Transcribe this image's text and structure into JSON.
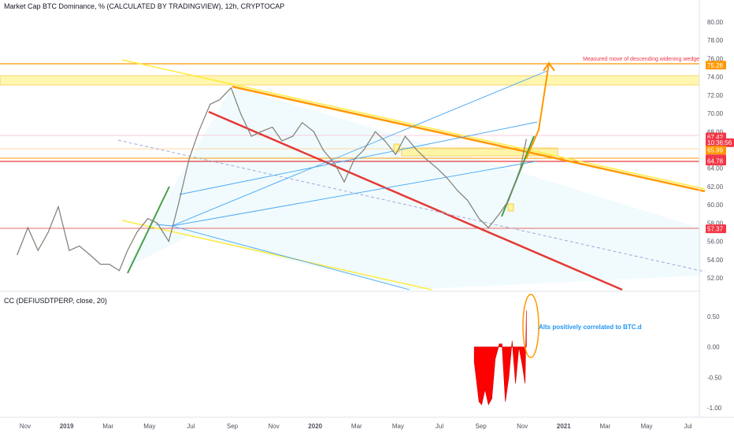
{
  "header": {
    "title": "Market Cap BTC Dominance, % (CALCULATED BY TRADINGVIEW), 12h, CRYPTOCAP",
    "indicator_title": "CC (DEFIUSDTPERP, close, 20)"
  },
  "annotations": {
    "measured_move": "Measured move of descending widening wedge",
    "correlation": "Alts positively correlated to BTC.d"
  },
  "colors": {
    "up_candle": "#26a69a",
    "down_candle": "#ef5350",
    "red_line": "#e53935",
    "orange_line": "#ff9800",
    "yellow_line": "#ffeb3b",
    "blue_line": "#42a5f5",
    "green_line": "#43a047",
    "zone_fill": "#fff59d",
    "badge_orange": "#ff9800",
    "badge_red": "#f23645"
  },
  "chart_data": [
    {
      "type": "line",
      "title": "Market Cap BTC Dominance, % (CALCULATED BY TRADINGVIEW), 12h, CRYPTOCAP",
      "x_ticks": [
        "Nov",
        "2019",
        "Mar",
        "May",
        "Jul",
        "Sep",
        "Nov",
        "2020",
        "Mar",
        "May",
        "Jul",
        "Sep",
        "Nov",
        "2021",
        "Mar",
        "May",
        "Jul"
      ],
      "y_ticks": [
        "52.00",
        "54.00",
        "56.00",
        "58.00",
        "60.00",
        "62.00",
        "64.00",
        "66.00",
        "68.00",
        "70.00",
        "72.00",
        "74.00",
        "76.00",
        "78.00",
        "80.00"
      ],
      "ylim": [
        51,
        81
      ],
      "price_badges": [
        {
          "label": "75.28",
          "value": 75.28,
          "color": "#ff9800"
        },
        {
          "label": "67.42",
          "value": 67.42,
          "color": "#f23645"
        },
        {
          "label": "10:36:56",
          "value": 66.8,
          "color": "#f23645"
        },
        {
          "label": "65.99",
          "value": 65.99,
          "color": "#ff9800"
        },
        {
          "label": "65.03",
          "value": 65.03,
          "color": "#f23645"
        },
        {
          "label": "64.78",
          "value": 64.78,
          "color": "#f23645"
        },
        {
          "label": "57.37",
          "value": 57.37,
          "color": "#f23645"
        }
      ],
      "series": [
        {
          "dates": [
            "2018-10-20",
            "2018-11-05",
            "2018-11-20",
            "2018-12-05",
            "2018-12-20",
            "2019-01-05",
            "2019-01-20",
            "2019-02-05",
            "2019-02-20",
            "2019-03-05",
            "2019-03-20",
            "2019-04-01",
            "2019-04-15",
            "2019-05-01",
            "2019-05-15",
            "2019-06-01",
            "2019-06-15",
            "2019-07-01",
            "2019-07-15",
            "2019-08-01",
            "2019-08-15",
            "2019-09-01",
            "2019-09-15",
            "2019-10-01",
            "2019-10-15",
            "2019-11-01",
            "2019-11-15",
            "2019-12-01",
            "2019-12-15",
            "2020-01-01",
            "2020-01-15",
            "2020-02-01",
            "2020-02-15",
            "2020-03-01",
            "2020-03-15",
            "2020-04-01",
            "2020-04-15",
            "2020-05-01",
            "2020-05-15",
            "2020-06-01",
            "2020-06-15",
            "2020-07-01",
            "2020-07-15",
            "2020-08-01",
            "2020-08-15",
            "2020-09-01",
            "2020-09-15",
            "2020-10-01",
            "2020-10-15",
            "2020-11-01",
            "2020-11-10"
          ],
          "values": [
            54.5,
            57.5,
            55.0,
            57.0,
            59.8,
            55.0,
            55.5,
            54.5,
            53.5,
            53.5,
            52.8,
            55.0,
            57.0,
            58.5,
            58.0,
            56.0,
            60.0,
            65.0,
            68.0,
            71.0,
            71.5,
            72.8,
            70.0,
            67.5,
            68.0,
            68.5,
            67.0,
            67.5,
            69.0,
            68.0,
            66.0,
            64.5,
            62.5,
            65.0,
            66.0,
            68.0,
            67.0,
            65.5,
            67.5,
            66.0,
            65.0,
            64.0,
            63.0,
            61.5,
            60.5,
            58.5,
            57.5,
            59.0,
            60.5,
            64.0,
            67.2
          ]
        }
      ]
    },
    {
      "type": "area",
      "title": "CC (DEFIUSDTPERP, close, 20)",
      "y_ticks": [
        "0.50",
        "0.00",
        "-0.50",
        "-1.00"
      ],
      "ylim": [
        -1.1,
        0.9
      ],
      "series": [
        {
          "dates": [
            "2020-08-25",
            "2020-09-01",
            "2020-09-05",
            "2020-09-10",
            "2020-09-15",
            "2020-09-20",
            "2020-09-25",
            "2020-10-01",
            "2020-10-05",
            "2020-10-10",
            "2020-10-15",
            "2020-10-20",
            "2020-10-25",
            "2020-10-30",
            "2020-11-04",
            "2020-11-08",
            "2020-11-10"
          ],
          "values": [
            -0.25,
            -0.9,
            -0.95,
            -0.7,
            -0.95,
            -0.85,
            -0.2,
            0.05,
            0.05,
            -0.9,
            -0.5,
            0.1,
            -0.6,
            0.0,
            -0.3,
            -0.6,
            0.6
          ]
        }
      ]
    }
  ]
}
